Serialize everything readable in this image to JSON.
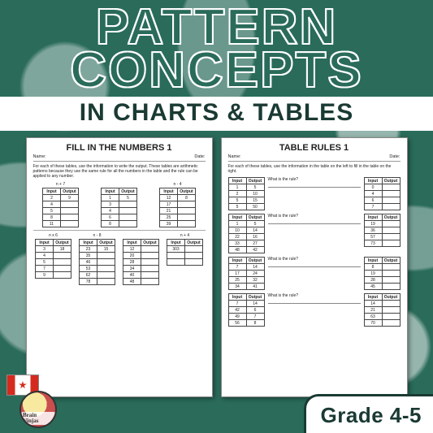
{
  "colors": {
    "primary_green": "#2a6b5a",
    "dark_green": "#1a3a33",
    "white": "#ffffff",
    "flag_red": "#d52b1e",
    "badge_outer": "#c94f4f",
    "badge_inner": "#f7e9a0"
  },
  "title": {
    "line1": "PATTERN",
    "line2": "CONCEPTS",
    "subtitle": "IN CHARTS & TABLES"
  },
  "worksheet1": {
    "heading": "FILL IN THE NUMBERS 1",
    "name_label": "Name:",
    "date_label": "Date:",
    "instructions": "For each of these tables, use the information to write the output. These tables are arithmetic patterns because they use the same rule for all the numbers in the table and the rule can be applied to any number.",
    "col_headers": [
      "Input",
      "Output"
    ],
    "top_section": {
      "rule_left": "n + 7",
      "table_left": [
        [
          "2",
          "9"
        ],
        [
          "4",
          ""
        ],
        [
          "5",
          ""
        ],
        [
          "8",
          ""
        ],
        [
          "11",
          ""
        ]
      ],
      "table_mid": [
        [
          "1",
          "5"
        ],
        [
          "3",
          ""
        ],
        [
          "4",
          ""
        ],
        [
          "6",
          ""
        ],
        [
          "8",
          ""
        ]
      ],
      "rule_right": "n - 4",
      "table_right": [
        [
          "12",
          "8"
        ],
        [
          "17",
          ""
        ],
        [
          "21",
          ""
        ],
        [
          "25",
          ""
        ],
        [
          "39",
          ""
        ]
      ]
    },
    "bottom_section": {
      "rule1": "n x 6",
      "table1": [
        [
          "3",
          "18"
        ],
        [
          "4",
          ""
        ],
        [
          "5",
          ""
        ],
        [
          "7",
          ""
        ],
        [
          "9",
          ""
        ]
      ],
      "rule2": "n - 8",
      "table2": [
        [
          "23",
          "15"
        ],
        [
          "35",
          ""
        ],
        [
          "46",
          ""
        ],
        [
          "53",
          ""
        ],
        [
          "62",
          ""
        ],
        [
          "78",
          ""
        ]
      ],
      "rule3": "",
      "table3": [
        [
          "12",
          ""
        ],
        [
          "20",
          ""
        ],
        [
          "28",
          ""
        ],
        [
          "34",
          ""
        ],
        [
          "40",
          ""
        ],
        [
          "48",
          ""
        ]
      ],
      "rule4": "n + 4",
      "table4": [
        [
          "303",
          ""
        ],
        [
          "",
          ""
        ],
        [
          "",
          ""
        ]
      ]
    }
  },
  "worksheet2": {
    "heading": "TABLE RULES 1",
    "name_label": "Name:",
    "date_label": "Date:",
    "instructions": "For each of these tables, use the information in the table on the left to fill in the table on the right.",
    "col_headers": [
      "Input",
      "Output"
    ],
    "rule_question": "What is the rule?",
    "rows": [
      {
        "left": [
          [
            "1",
            "5"
          ],
          [
            "2",
            "10"
          ],
          [
            "5",
            "15"
          ],
          [
            "5",
            "50"
          ]
        ],
        "right": [
          [
            "0",
            ""
          ],
          [
            "4",
            ""
          ],
          [
            "6",
            ""
          ],
          [
            "7",
            ""
          ]
        ]
      },
      {
        "left": [
          [
            "1",
            "5"
          ],
          [
            "10",
            "14"
          ],
          [
            "22",
            "16"
          ],
          [
            "33",
            "27"
          ],
          [
            "48",
            "42"
          ]
        ],
        "right": [
          [
            "19",
            ""
          ],
          [
            "36",
            ""
          ],
          [
            "57",
            ""
          ],
          [
            "73",
            ""
          ]
        ]
      },
      {
        "left": [
          [
            "7",
            "14"
          ],
          [
            "17",
            "24"
          ],
          [
            "25",
            "32"
          ],
          [
            "34",
            "41"
          ]
        ],
        "right": [
          [
            "8",
            ""
          ],
          [
            "19",
            ""
          ],
          [
            "28",
            ""
          ],
          [
            "45",
            ""
          ]
        ]
      },
      {
        "left": [
          [
            "7",
            "14"
          ],
          [
            "42",
            "6"
          ],
          [
            "49",
            "7"
          ],
          [
            "56",
            "8"
          ]
        ],
        "right": [
          [
            "14",
            ""
          ],
          [
            "21",
            ""
          ],
          [
            "63",
            ""
          ],
          [
            "70",
            ""
          ]
        ]
      }
    ]
  },
  "badge": {
    "brand": "Brain Ninjas"
  },
  "grade": "Grade 4-5"
}
